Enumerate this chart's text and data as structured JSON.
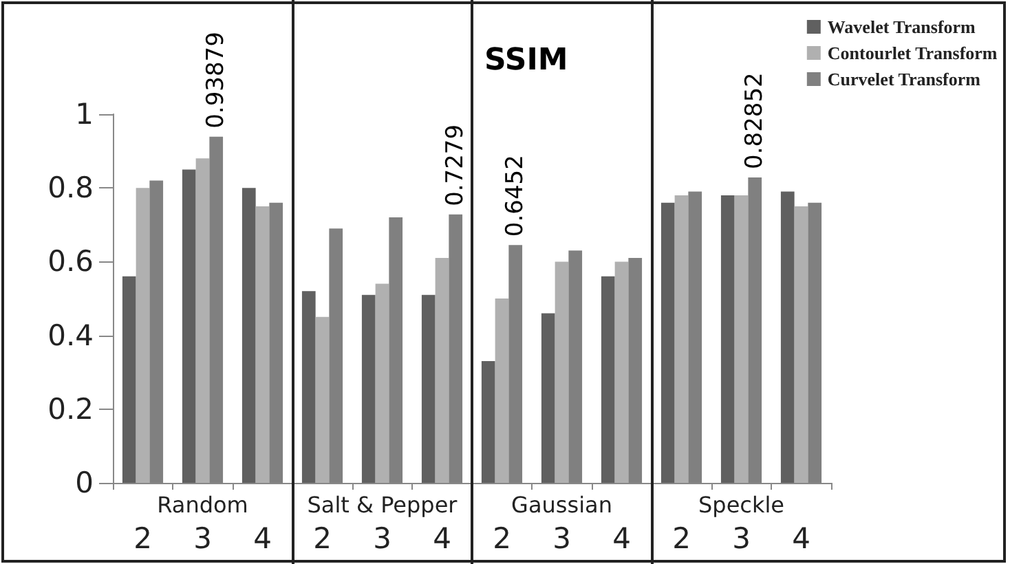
{
  "chart_data": {
    "type": "bar",
    "title": "SSIM",
    "categories": [
      "2",
      "3",
      "4",
      "2",
      "3",
      "4",
      "2",
      "3",
      "4",
      "2",
      "3",
      "4"
    ],
    "annotations": [
      "Random",
      "Salt & Pepper",
      "Gaussian",
      "Speckle"
    ],
    "series": [
      {
        "name": "Wavelet Transform",
        "color": "#606060",
        "values": [
          0.56,
          0.85,
          0.8,
          0.52,
          0.51,
          0.51,
          0.33,
          0.46,
          0.56,
          0.76,
          0.78,
          0.79
        ]
      },
      {
        "name": "Contourlet Transform",
        "color": "#b0b0b0",
        "values": [
          0.8,
          0.88,
          0.75,
          0.45,
          0.54,
          0.61,
          0.5,
          0.6,
          0.6,
          0.78,
          0.78,
          0.75
        ]
      },
      {
        "name": "Curvelet Transform",
        "color": "#808080",
        "values": [
          0.82,
          0.93879,
          0.76,
          0.69,
          0.72,
          0.7279,
          0.6452,
          0.63,
          0.61,
          0.79,
          0.82852,
          0.76
        ],
        "value_labels": [
          null,
          "0.93879",
          null,
          null,
          null,
          "0.7279",
          "0.6452",
          null,
          null,
          null,
          "0.82852",
          null
        ]
      }
    ],
    "ylim": [
      0,
      1
    ],
    "yticks": [
      0,
      0.2,
      0.4,
      0.6,
      0.8,
      1
    ],
    "grid": false,
    "legend": "top right"
  }
}
